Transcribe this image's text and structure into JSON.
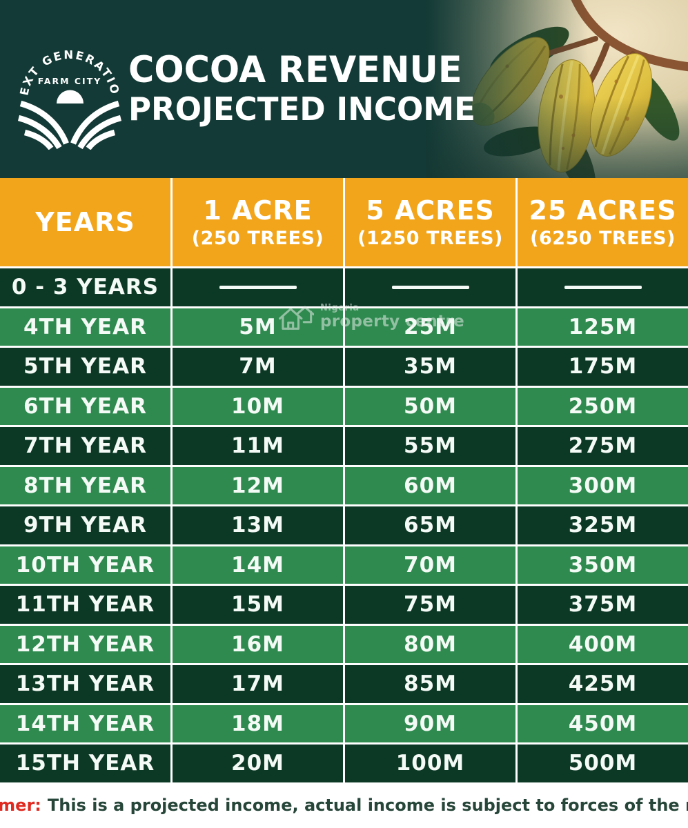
{
  "header": {
    "logo": {
      "arc_text": "NEXT GENERATION",
      "inner_text": "FARM CITY"
    },
    "title_line1": "COCOA REVENUE",
    "title_line2": "PROJECTED INCOME"
  },
  "table": {
    "columns": [
      {
        "label": "YEARS",
        "sub": null
      },
      {
        "label": "1 ACRE",
        "sub": "(250 TREES)"
      },
      {
        "label": "5 ACRES",
        "sub": "(1250 TREES)"
      },
      {
        "label": "25 ACRES",
        "sub": "(6250 TREES)"
      }
    ],
    "rows": [
      {
        "year": "0 - 3 YEARS",
        "values": [
          null,
          null,
          null
        ]
      },
      {
        "year": "4TH YEAR",
        "values": [
          "5M",
          "25M",
          "125M"
        ]
      },
      {
        "year": "5TH YEAR",
        "values": [
          "7M",
          "35M",
          "175M"
        ]
      },
      {
        "year": "6TH YEAR",
        "values": [
          "10M",
          "50M",
          "250M"
        ]
      },
      {
        "year": "7TH YEAR",
        "values": [
          "11M",
          "55M",
          "275M"
        ]
      },
      {
        "year": "8TH YEAR",
        "values": [
          "12M",
          "60M",
          "300M"
        ]
      },
      {
        "year": "9TH YEAR",
        "values": [
          "13M",
          "65M",
          "325M"
        ]
      },
      {
        "year": "10TH YEAR",
        "values": [
          "14M",
          "70M",
          "350M"
        ]
      },
      {
        "year": "11TH YEAR",
        "values": [
          "15M",
          "75M",
          "375M"
        ]
      },
      {
        "year": "12TH YEAR",
        "values": [
          "16M",
          "80M",
          "400M"
        ]
      },
      {
        "year": "13TH YEAR",
        "values": [
          "17M",
          "85M",
          "425M"
        ]
      },
      {
        "year": "14TH YEAR",
        "values": [
          "18M",
          "90M",
          "450M"
        ]
      },
      {
        "year": "15TH YEAR",
        "values": [
          "20M",
          "100M",
          "500M"
        ]
      }
    ]
  },
  "watermark": {
    "icon": "house-icon",
    "line_small": "Nigeria",
    "line_main": "property centre"
  },
  "disclaimer": {
    "label": "Disclaimer:",
    "text": "This is a projected income, actual income is subject to forces of the market"
  },
  "colors": {
    "banner": "#133a36",
    "header": "#f2a51b",
    "row_dark": "#0c3826",
    "row_light": "#2e8a4f",
    "disclaimer_red": "#e02a20",
    "disclaimer_text": "#27463a",
    "cell_text": "#f4faf5"
  },
  "chart_data": {
    "type": "table",
    "title": "COCOA REVENUE PROJECTED INCOME",
    "columns": [
      "YEARS",
      "1 ACRE (250 TREES)",
      "5 ACRES (1250 TREES)",
      "25 ACRES (6250 TREES)"
    ],
    "unit": "M (millions)",
    "rows": [
      [
        "0 - 3 YEARS",
        null,
        null,
        null
      ],
      [
        "4TH YEAR",
        5,
        25,
        125
      ],
      [
        "5TH YEAR",
        7,
        35,
        175
      ],
      [
        "6TH YEAR",
        10,
        50,
        250
      ],
      [
        "7TH YEAR",
        11,
        55,
        275
      ],
      [
        "8TH YEAR",
        12,
        60,
        300
      ],
      [
        "9TH YEAR",
        13,
        65,
        325
      ],
      [
        "10TH YEAR",
        14,
        70,
        350
      ],
      [
        "11TH YEAR",
        15,
        75,
        375
      ],
      [
        "12TH YEAR",
        16,
        80,
        400
      ],
      [
        "13TH YEAR",
        17,
        85,
        425
      ],
      [
        "14TH YEAR",
        18,
        90,
        450
      ],
      [
        "15TH YEAR",
        20,
        100,
        500
      ]
    ]
  }
}
